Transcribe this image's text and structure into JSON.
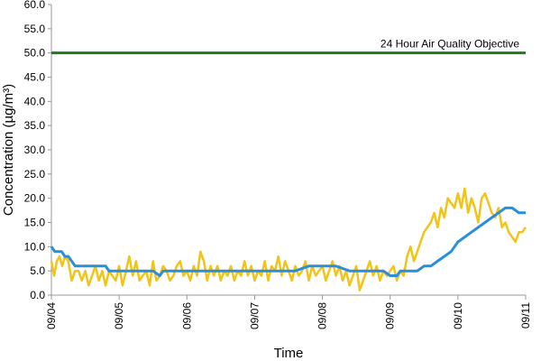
{
  "chart_data": {
    "type": "line",
    "title": "",
    "xlabel": "Time",
    "ylabel": "Concentration (µg/m³)",
    "ylim": [
      0,
      60
    ],
    "y_ticks": [
      "0.0",
      "5.0",
      "10.0",
      "15.0",
      "20.0",
      "25.0",
      "30.0",
      "35.0",
      "40.0",
      "45.0",
      "50.0",
      "55.0",
      "60.0"
    ],
    "categories": [
      "09/04",
      "09/05",
      "09/06",
      "09/07",
      "09/08",
      "09/09",
      "09/10",
      "09/11"
    ],
    "grid": false,
    "legend": "none",
    "reference_line": {
      "label": "24 Hour Air Quality Objective",
      "value": 50,
      "color": "#1f7a1f"
    },
    "series": [
      {
        "color": "#f0c419",
        "x": [
          0.0,
          0.04,
          0.08,
          0.12,
          0.16,
          0.2,
          0.25,
          0.3,
          0.35,
          0.4,
          0.45,
          0.5,
          0.55,
          0.6,
          0.65,
          0.7,
          0.75,
          0.8,
          0.85,
          0.9,
          0.95,
          1.0,
          1.05,
          1.1,
          1.15,
          1.2,
          1.25,
          1.3,
          1.35,
          1.4,
          1.45,
          1.5,
          1.55,
          1.6,
          1.65,
          1.7,
          1.75,
          1.8,
          1.85,
          1.9,
          1.95,
          2.0,
          2.05,
          2.1,
          2.15,
          2.2,
          2.25,
          2.3,
          2.35,
          2.4,
          2.45,
          2.5,
          2.55,
          2.6,
          2.65,
          2.7,
          2.75,
          2.8,
          2.85,
          2.9,
          2.95,
          3.0,
          3.05,
          3.1,
          3.15,
          3.2,
          3.25,
          3.3,
          3.35,
          3.4,
          3.45,
          3.5,
          3.55,
          3.6,
          3.65,
          3.7,
          3.75,
          3.8,
          3.85,
          3.9,
          3.95,
          4.0,
          4.05,
          4.1,
          4.15,
          4.2,
          4.25,
          4.3,
          4.35,
          4.4,
          4.45,
          4.5,
          4.55,
          4.6,
          4.65,
          4.7,
          4.75,
          4.8,
          4.85,
          4.9,
          4.95,
          5.0,
          5.05,
          5.1,
          5.15,
          5.2,
          5.25,
          5.3,
          5.35,
          5.4,
          5.45,
          5.5,
          5.55,
          5.6,
          5.65,
          5.7,
          5.75,
          5.8,
          5.85,
          5.9,
          5.95,
          6.0,
          6.05,
          6.1,
          6.15,
          6.2,
          6.25,
          6.3,
          6.35,
          6.4,
          6.45,
          6.5,
          6.55,
          6.6,
          6.65,
          6.7,
          6.75,
          6.8,
          6.85,
          6.9,
          6.95,
          7.0
        ],
        "values": [
          7,
          4,
          7,
          8,
          6,
          8,
          7,
          3,
          5,
          5,
          3,
          5,
          2,
          4,
          6,
          3,
          5,
          2,
          5,
          4,
          3,
          6,
          2,
          5,
          8,
          4,
          7,
          3,
          4,
          5,
          2,
          7,
          3,
          4,
          6,
          5,
          3,
          4,
          6,
          7,
          4,
          5,
          3,
          6,
          4,
          9,
          7,
          3,
          6,
          4,
          6,
          3,
          5,
          4,
          6,
          3,
          5,
          4,
          7,
          4,
          6,
          3,
          5,
          4,
          7,
          3,
          6,
          5,
          8,
          4,
          7,
          5,
          3,
          6,
          4,
          5,
          7,
          3,
          6,
          4,
          5,
          6,
          3,
          5,
          7,
          4,
          6,
          3,
          5,
          2,
          4,
          6,
          1,
          3,
          5,
          7,
          4,
          6,
          3,
          5,
          4,
          5,
          6,
          3,
          5,
          4,
          8,
          10,
          7,
          9,
          11,
          13,
          14,
          15,
          17,
          14,
          18,
          16,
          20,
          19,
          18,
          21,
          18,
          22,
          17,
          20,
          18,
          15,
          20,
          21,
          19,
          17,
          16,
          18,
          14,
          15,
          13,
          12,
          11,
          13,
          13,
          14
        ]
      },
      {
        "color": "#2b8fd8",
        "x": [
          0.0,
          0.05,
          0.1,
          0.15,
          0.2,
          0.25,
          0.3,
          0.35,
          0.4,
          0.45,
          0.5,
          0.6,
          0.7,
          0.8,
          0.85,
          0.9,
          1.0,
          1.1,
          1.2,
          1.3,
          1.4,
          1.5,
          1.6,
          1.65,
          1.7,
          1.8,
          1.9,
          2.0,
          2.2,
          2.4,
          2.6,
          2.8,
          3.0,
          3.2,
          3.4,
          3.6,
          3.8,
          4.0,
          4.2,
          4.4,
          4.6,
          4.8,
          4.9,
          5.0,
          5.05,
          5.1,
          5.15,
          5.2,
          5.3,
          5.4,
          5.5,
          5.6,
          5.7,
          5.8,
          5.9,
          6.0,
          6.1,
          6.2,
          6.3,
          6.4,
          6.5,
          6.6,
          6.7,
          6.8,
          6.9,
          7.0
        ],
        "values": [
          10,
          9,
          9,
          9,
          8,
          8,
          7,
          6,
          6,
          6,
          6,
          6,
          6,
          6,
          5,
          5,
          5,
          5,
          5,
          5,
          5,
          5,
          4,
          5,
          5,
          5,
          5,
          5,
          5,
          5,
          5,
          5,
          5,
          5,
          5,
          5,
          6,
          6,
          6,
          5,
          5,
          5,
          5,
          4,
          4,
          4,
          5,
          5,
          5,
          5,
          6,
          6,
          7,
          8,
          9,
          11,
          12,
          13,
          14,
          15,
          16,
          17,
          18,
          18,
          17,
          17
        ]
      }
    ]
  }
}
